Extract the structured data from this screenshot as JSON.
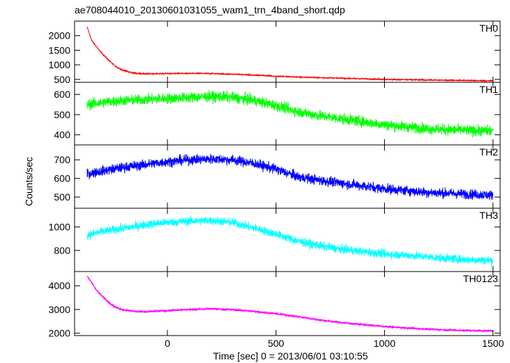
{
  "chart_data": {
    "type": "line",
    "title": "ae708044010_20130601031055_wam1_trn_4band_short.qdp",
    "xlabel": "Time [sec] 0 = 2013/06/01 03:10:55",
    "ylabel": "Counts/sec",
    "xlim": [
      -428,
      1533
    ],
    "x_ticks": [
      0,
      500,
      1000,
      1500
    ],
    "x_tick_labels": [
      "0",
      "500",
      "1000",
      "1500"
    ],
    "grid": false,
    "legend": "none",
    "panels": [
      {
        "name": "TH0",
        "color": "#ff0000",
        "ylim": [
          400,
          2500
        ],
        "y_ticks": [
          500,
          1000,
          1500,
          2000
        ],
        "y_tick_labels": [
          "500",
          "1000",
          "1500",
          "2000"
        ],
        "x": [
          -370,
          -350,
          -330,
          -300,
          -270,
          -240,
          -210,
          -180,
          -150,
          -100,
          0,
          100,
          200,
          300,
          400,
          500,
          600,
          700,
          800,
          900,
          1000,
          1100,
          1200,
          1300,
          1400,
          1500
        ],
        "y": [
          2300,
          1850,
          1650,
          1380,
          1150,
          950,
          830,
          760,
          710,
          690,
          700,
          705,
          700,
          680,
          650,
          610,
          580,
          560,
          540,
          520,
          500,
          490,
          480,
          470,
          460,
          450
        ],
        "noise": 20
      },
      {
        "name": "TH1",
        "color": "#00ff00",
        "ylim": [
          350,
          660
        ],
        "y_ticks": [
          400,
          500,
          600
        ],
        "y_tick_labels": [
          "400",
          "500",
          "600"
        ],
        "x": [
          -370,
          -300,
          -200,
          -100,
          0,
          100,
          200,
          300,
          400,
          500,
          600,
          700,
          800,
          900,
          1000,
          1100,
          1200,
          1300,
          1400,
          1500
        ],
        "y": [
          550,
          560,
          570,
          575,
          580,
          585,
          590,
          585,
          570,
          545,
          515,
          495,
          480,
          465,
          450,
          440,
          430,
          425,
          420,
          420
        ],
        "noise": 28
      },
      {
        "name": "TH2",
        "color": "#0000ff",
        "ylim": [
          440,
          780
        ],
        "y_ticks": [
          500,
          600,
          700
        ],
        "y_tick_labels": [
          "500",
          "600",
          "700"
        ],
        "x": [
          -370,
          -300,
          -200,
          -100,
          0,
          100,
          200,
          300,
          400,
          500,
          600,
          700,
          800,
          900,
          1000,
          1100,
          1200,
          1300,
          1400,
          1500
        ],
        "y": [
          625,
          640,
          660,
          675,
          690,
          700,
          705,
          700,
          680,
          650,
          610,
          590,
          575,
          560,
          545,
          535,
          525,
          520,
          515,
          510
        ],
        "noise": 28
      },
      {
        "name": "TH3",
        "color": "#00ffff",
        "ylim": [
          620,
          1160
        ],
        "y_ticks": [
          800,
          1000
        ],
        "y_tick_labels": [
          "800",
          "1000"
        ],
        "x": [
          -370,
          -300,
          -200,
          -100,
          0,
          100,
          200,
          300,
          400,
          500,
          600,
          700,
          800,
          900,
          1000,
          1100,
          1200,
          1300,
          1400,
          1500
        ],
        "y": [
          930,
          960,
          990,
          1020,
          1040,
          1050,
          1055,
          1040,
          990,
          940,
          880,
          840,
          810,
          790,
          770,
          760,
          745,
          730,
          720,
          715
        ],
        "noise": 38
      },
      {
        "name": "TH0123",
        "color": "#ff00ff",
        "ylim": [
          1900,
          4600
        ],
        "y_ticks": [
          2000,
          3000,
          4000
        ],
        "y_tick_labels": [
          "2000",
          "3000",
          "4000"
        ],
        "x": [
          -370,
          -350,
          -330,
          -300,
          -270,
          -240,
          -200,
          -150,
          -100,
          0,
          100,
          200,
          300,
          400,
          500,
          600,
          700,
          800,
          900,
          1000,
          1100,
          1200,
          1300,
          1400,
          1500
        ],
        "y": [
          4400,
          4150,
          3850,
          3550,
          3300,
          3100,
          2980,
          2920,
          2900,
          2950,
          3000,
          3030,
          2990,
          2920,
          2820,
          2700,
          2560,
          2450,
          2360,
          2280,
          2220,
          2170,
          2130,
          2110,
          2100
        ],
        "noise": 45
      }
    ]
  }
}
